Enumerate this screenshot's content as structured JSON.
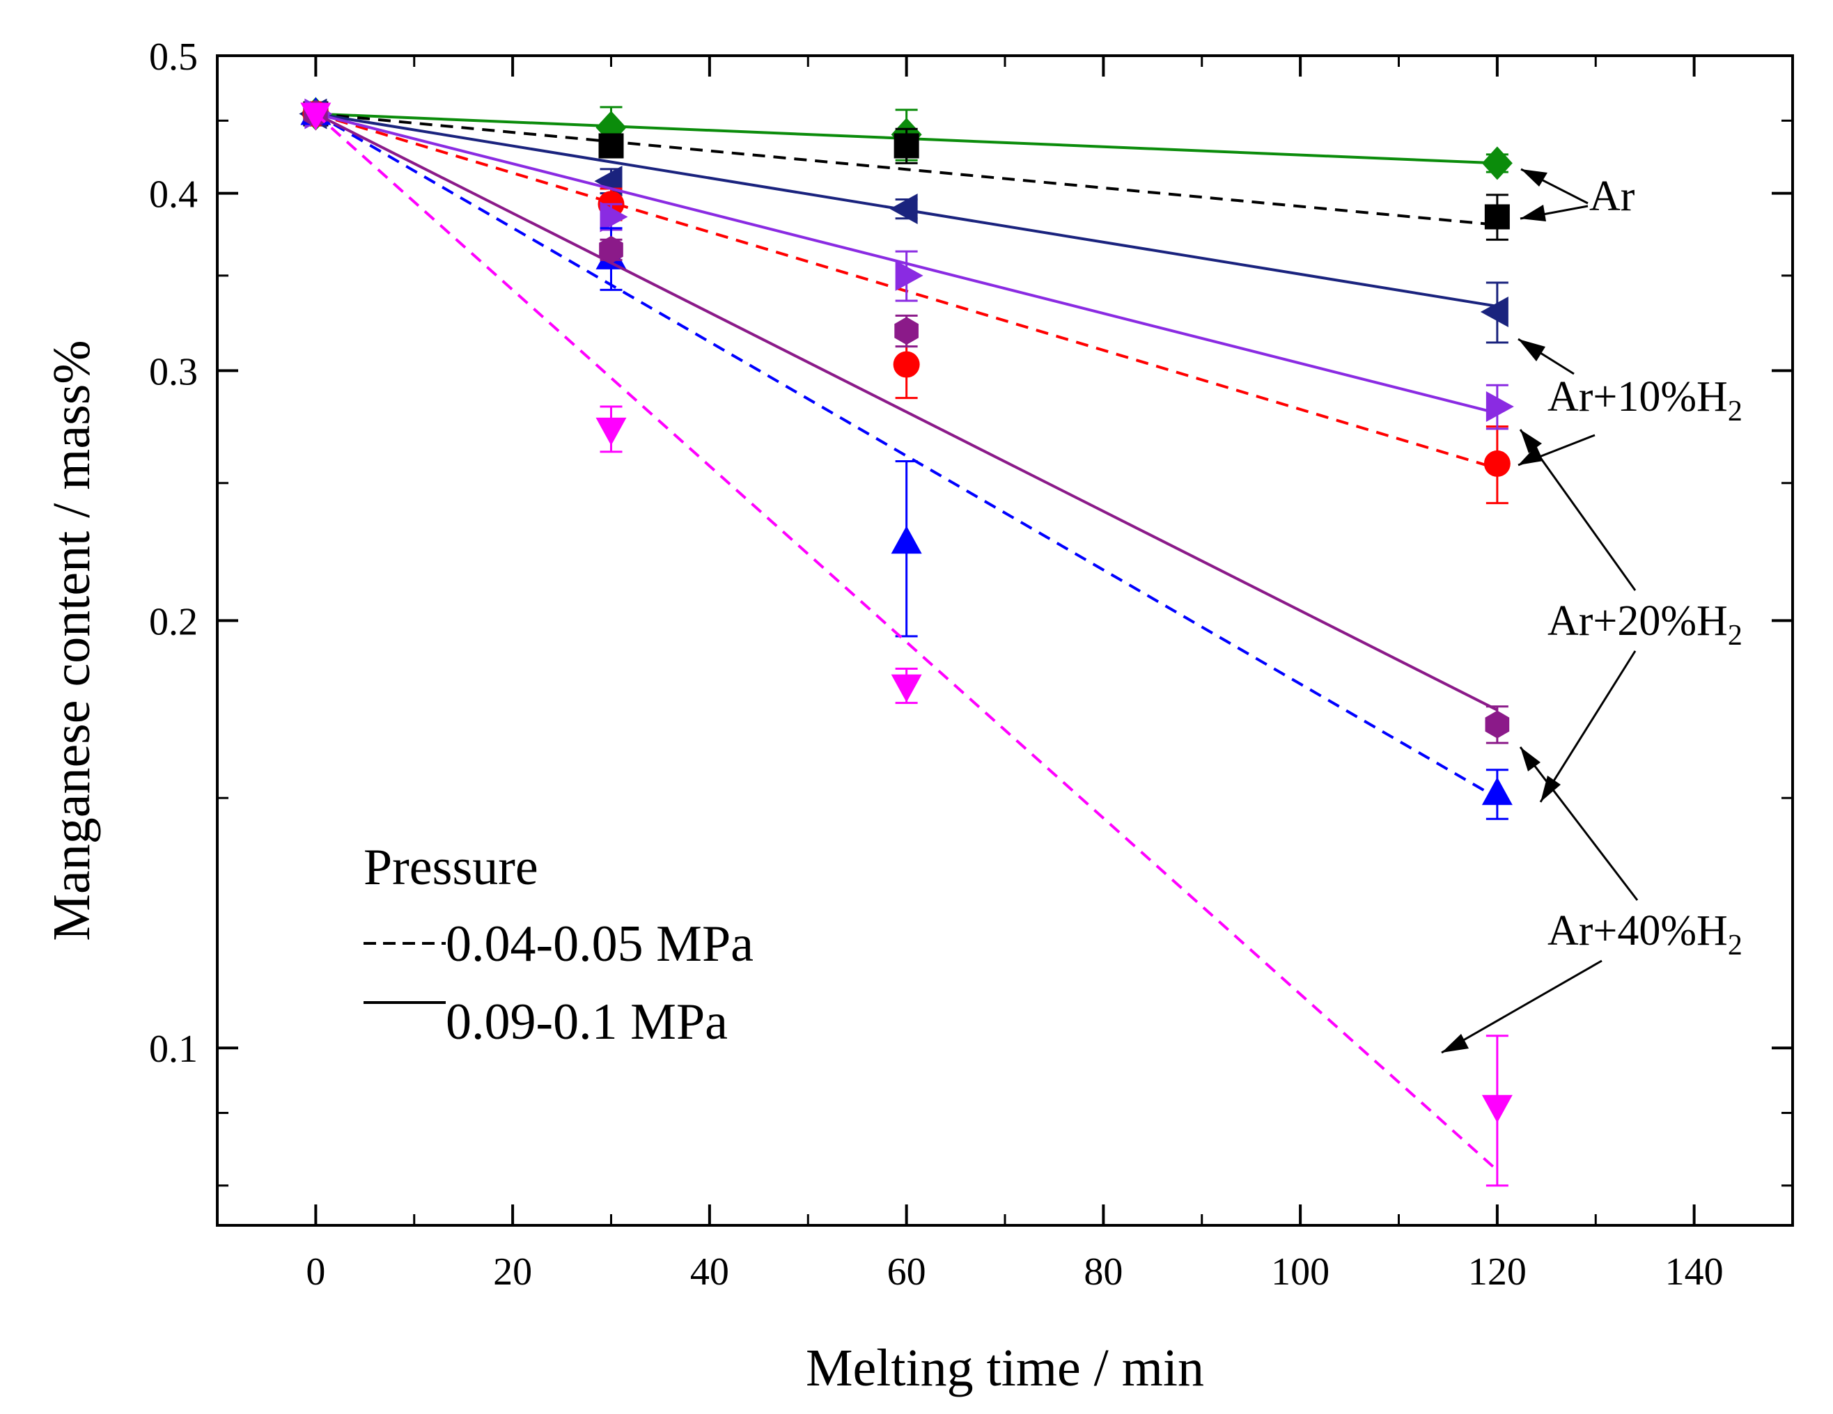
{
  "chart_data": {
    "type": "scatter",
    "xlabel": "Melting time / min",
    "ylabel": "Manganese content / mass%",
    "xlim": [
      -10,
      150
    ],
    "ylim": [
      0.075,
      0.5
    ],
    "yscale": "log",
    "xticks": [
      0,
      20,
      40,
      60,
      80,
      100,
      120,
      140
    ],
    "xtick_labels": [
      "0",
      "20",
      "40",
      "60",
      "80",
      "100",
      "120",
      "140"
    ],
    "yticks": [
      0.1,
      0.2,
      0.3,
      0.4,
      0.5
    ],
    "ytick_labels": [
      "0.1",
      "0.2",
      "0.3",
      "0.4",
      "0.5"
    ],
    "grid": false,
    "series": [
      {
        "name": "Ar, 0.09-0.1 MPa",
        "color": "#0b8c0b",
        "marker": "diamond",
        "line": "solid",
        "x": [
          0,
          30,
          60,
          120
        ],
        "y": [
          0.455,
          0.445,
          0.44,
          0.42
        ],
        "err": [
          0,
          0.015,
          0.018,
          0.006
        ],
        "fit": [
          [
            0,
            0.455
          ],
          [
            120,
            0.42
          ]
        ]
      },
      {
        "name": "Ar, 0.04-0.05 MPa",
        "color": "#000000",
        "marker": "square",
        "line": "dashed",
        "x": [
          0,
          30,
          60,
          120
        ],
        "y": [
          0.455,
          0.432,
          0.432,
          0.385
        ],
        "err": [
          0,
          0.008,
          0.012,
          0.014
        ],
        "fit": [
          [
            0,
            0.455
          ],
          [
            120,
            0.38
          ]
        ]
      },
      {
        "name": "Ar+10%H2, 0.09-0.1 MPa",
        "color": "#1a237e",
        "marker": "triangle-left",
        "line": "solid",
        "x": [
          0,
          30,
          60,
          120
        ],
        "y": [
          0.455,
          0.408,
          0.39,
          0.33
        ],
        "err": [
          0,
          0.008,
          0.006,
          0.016
        ],
        "fit": [
          [
            0,
            0.455
          ],
          [
            120,
            0.333
          ]
        ]
      },
      {
        "name": "Ar+10%H2, 0.04-0.05 MPa",
        "color": "#ff0000",
        "marker": "circle",
        "line": "dashed",
        "x": [
          0,
          30,
          60,
          120
        ],
        "y": [
          0.455,
          0.393,
          0.303,
          0.258
        ],
        "err": [
          0,
          0.01,
          0.016,
          0.016
        ],
        "fit": [
          [
            0,
            0.455
          ],
          [
            120,
            0.256
          ]
        ]
      },
      {
        "name": "Ar+20%H2, 0.09-0.1 MPa",
        "color": "#8a2be2",
        "marker": "triangle-right",
        "line": "solid",
        "x": [
          0,
          30,
          60,
          120
        ],
        "y": [
          0.455,
          0.385,
          0.35,
          0.283
        ],
        "err": [
          0,
          0.008,
          0.014,
          0.01
        ],
        "fit": [
          [
            0,
            0.455
          ],
          [
            120,
            0.28
          ]
        ]
      },
      {
        "name": "Ar+20%H2, 0.04-0.05 MPa",
        "color": "#0000ff",
        "marker": "triangle-up",
        "line": "dashed",
        "x": [
          0,
          30,
          60,
          120
        ],
        "y": [
          0.455,
          0.36,
          0.227,
          0.151
        ],
        "err": [
          0,
          0.018,
          0.032,
          0.006
        ],
        "fit": [
          [
            0,
            0.455
          ],
          [
            120,
            0.15
          ]
        ]
      },
      {
        "name": "Ar+40%H2, 0.09-0.1 MPa",
        "color": "#8b1a89",
        "marker": "hexagon",
        "line": "solid",
        "x": [
          0,
          30,
          60,
          120
        ],
        "y": [
          0.455,
          0.365,
          0.32,
          0.169
        ],
        "err": [
          0,
          0.006,
          0.008,
          0.005
        ],
        "fit": [
          [
            0,
            0.455
          ],
          [
            120,
            0.173
          ]
        ]
      },
      {
        "name": "Ar+40%H2, 0.04-0.05 MPa",
        "color": "#ff00ff",
        "marker": "triangle-down",
        "line": "dashed",
        "x": [
          0,
          30,
          60,
          120
        ],
        "y": [
          0.455,
          0.273,
          0.18,
          0.091
        ],
        "err": [
          0,
          0.01,
          0.005,
          0.011
        ],
        "fit": [
          [
            0,
            0.455
          ],
          [
            120,
            0.082
          ]
        ]
      }
    ],
    "annotations": {
      "ar": "Ar",
      "h10": "Ar+10%H",
      "h20": "Ar+20%H",
      "h40": "Ar+40%H",
      "sub": "2"
    },
    "legend": {
      "title": "Pressure",
      "dashed_label": "0.04-0.05 MPa",
      "solid_label": "0.09-0.1 MPa",
      "placement": "bottom-left"
    }
  }
}
